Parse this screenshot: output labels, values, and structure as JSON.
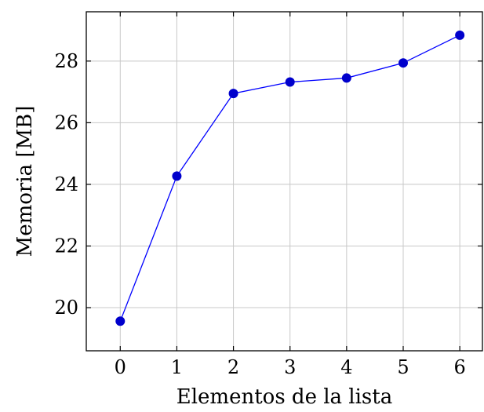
{
  "chart_data": {
    "type": "line",
    "title": "",
    "xlabel": "Elementos de la lista",
    "ylabel": "Memoria [MB]",
    "xlim": [
      -0.6,
      6.4
    ],
    "ylim": [
      18.6,
      29.6
    ],
    "xticks": [
      0,
      1,
      2,
      3,
      4,
      5,
      6
    ],
    "yticks": [
      20,
      22,
      24,
      26,
      28
    ],
    "grid": true,
    "series": [
      {
        "x": [
          0,
          1,
          2,
          3,
          4,
          5,
          6
        ],
        "values": [
          19.56,
          24.27,
          26.95,
          27.32,
          27.45,
          27.94,
          28.84
        ]
      }
    ],
    "colors": {
      "line": "#0000ff",
      "marker": "#0000cc"
    }
  }
}
